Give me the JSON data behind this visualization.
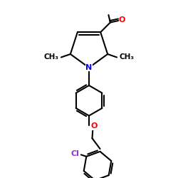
{
  "background_color": "#ffffff",
  "figsize": [
    2.5,
    2.5
  ],
  "dpi": 100,
  "bond_color": "#000000",
  "bond_width": 1.5,
  "font_size": 8,
  "colors": {
    "O": "#ff0000",
    "N": "#0000ff",
    "Cl": "#9932cc",
    "C": "#000000"
  }
}
